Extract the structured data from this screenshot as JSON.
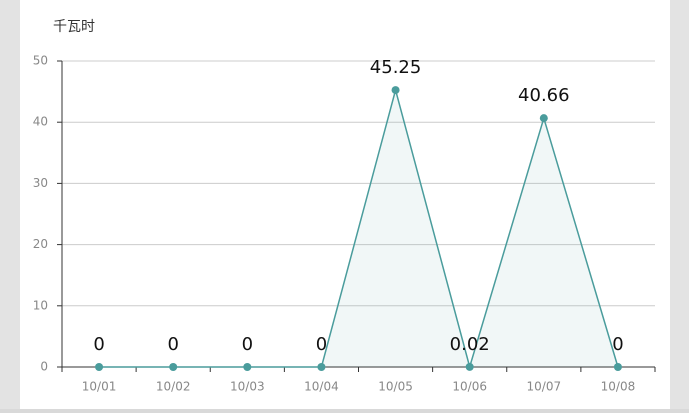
{
  "chart_data": {
    "type": "line",
    "ylabel": "千瓦时",
    "categories": [
      "10/01",
      "10/02",
      "10/03",
      "10/04",
      "10/05",
      "10/06",
      "10/07",
      "10/08"
    ],
    "values": [
      0,
      0,
      0,
      0,
      45.25,
      0.02,
      40.66,
      0
    ],
    "color": "#4a9c9c",
    "area": true,
    "data_labels": true,
    "ylim": [
      0,
      50
    ],
    "yticks": [
      0,
      10,
      20,
      30,
      40,
      50
    ],
    "grid": true
  }
}
